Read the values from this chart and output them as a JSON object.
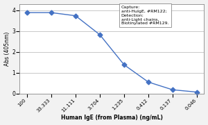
{
  "x_labels": [
    "100",
    "33.333",
    "11.111",
    "3.704",
    "1.235",
    "0.412",
    "0.137",
    "0.046"
  ],
  "y_values": [
    3.88,
    3.88,
    3.73,
    2.82,
    1.38,
    0.55,
    0.18,
    0.07
  ],
  "line_color": "#4472C4",
  "marker": "D",
  "marker_size": 3.5,
  "xlabel": "Human IgE (from Plasma) (ng/mL)",
  "ylabel": "Abs (405nm)",
  "ylim": [
    0,
    4.3
  ],
  "yticks": [
    0,
    1,
    2,
    3,
    4
  ],
  "legend_text": "Capture:\nanti-HuIgE, #RM122;\nDetection:\nanti-Light chains,\nBiotinylated #RM129.",
  "grid_color": "#c0c0c0",
  "background_color": "#f2f2f2",
  "plot_bg_color": "#ffffff"
}
